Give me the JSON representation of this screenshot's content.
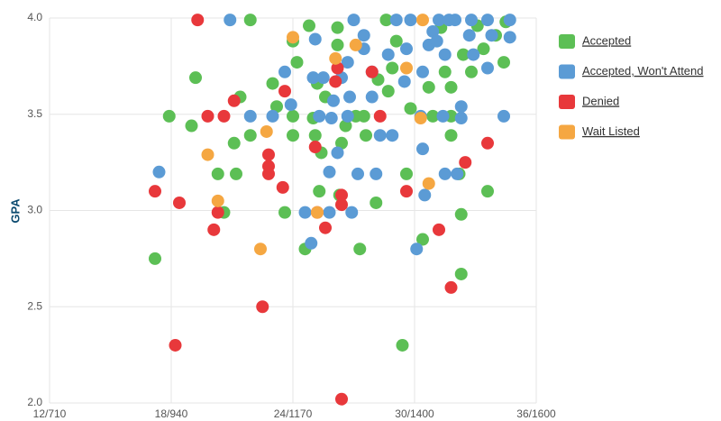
{
  "chart_data": {
    "type": "scatter",
    "y_label": "GPA",
    "xlim": [
      12,
      36
    ],
    "ylim": [
      2,
      4
    ],
    "xticks": [
      {
        "value": 12,
        "label": "12/710"
      },
      {
        "value": 18,
        "label": "18/940"
      },
      {
        "value": 24,
        "label": "24/1170"
      },
      {
        "value": 30,
        "label": "30/1400"
      },
      {
        "value": 36,
        "label": "36/1600"
      }
    ],
    "yticks": [
      {
        "value": 2,
        "label": "2.0"
      },
      2.5,
      {
        "value": 3,
        "label": "3.0"
      },
      3.5,
      {
        "value": 4,
        "label": "4.0"
      }
    ],
    "grid": true,
    "legend": "right",
    "series": [
      {
        "name": "Accepted",
        "color": "#5cbf55",
        "x": [
          17.2,
          17.9,
          19.0,
          19.2,
          20.3,
          20.6,
          21.1,
          21.2,
          21.4,
          21.9,
          21.9,
          23.0,
          23.2,
          23.6,
          24.0,
          24.0,
          24.0,
          24.2,
          24.6,
          24.8,
          25.0,
          25.1,
          25.2,
          25.3,
          25.4,
          25.6,
          26.2,
          26.2,
          26.3,
          26.4,
          26.6,
          27.1,
          27.3,
          27.5,
          27.6,
          28.1,
          28.2,
          28.6,
          28.7,
          28.9,
          29.1,
          29.4,
          29.6,
          29.8,
          30.4,
          30.7,
          30.9,
          31.3,
          31.5,
          31.8,
          31.8,
          31.8,
          32.2,
          32.3,
          32.3,
          32.4,
          32.8,
          33.1,
          33.4,
          33.6,
          34.0,
          34.4,
          34.5
        ],
        "values": [
          2.75,
          3.49,
          3.44,
          3.69,
          3.19,
          2.99,
          3.35,
          3.19,
          3.59,
          3.99,
          3.39,
          3.66,
          3.54,
          2.99,
          3.49,
          3.88,
          3.39,
          3.77,
          2.8,
          3.96,
          3.48,
          3.39,
          3.66,
          3.1,
          3.3,
          3.59,
          3.95,
          3.86,
          3.08,
          3.35,
          3.44,
          3.49,
          2.8,
          3.49,
          3.39,
          3.04,
          3.68,
          3.99,
          3.62,
          3.74,
          3.88,
          2.3,
          3.19,
          3.53,
          2.85,
          3.64,
          3.49,
          3.95,
          3.72,
          3.49,
          3.39,
          3.64,
          3.19,
          2.98,
          2.67,
          3.81,
          3.72,
          3.96,
          3.84,
          3.1,
          3.91,
          3.77,
          3.98
        ]
      },
      {
        "name": "Accepted, Won't Attend",
        "color": "#5b9bd5",
        "x": [
          17.4,
          20.9,
          21.9,
          23.0,
          23.6,
          23.9,
          24.6,
          24.9,
          25.0,
          25.1,
          25.3,
          25.5,
          25.8,
          25.8,
          25.9,
          26.0,
          26.2,
          26.4,
          26.7,
          26.7,
          26.8,
          26.9,
          27.0,
          27.2,
          27.5,
          27.5,
          27.9,
          28.1,
          27.9,
          28.3,
          28.7,
          28.9,
          29.1,
          29.5,
          29.6,
          29.8,
          30.1,
          30.3,
          30.4,
          30.4,
          30.5,
          30.7,
          30.9,
          31.1,
          31.2,
          31.4,
          31.5,
          31.5,
          31.7,
          32.0,
          32.1,
          32.3,
          32.3,
          32.7,
          32.8,
          32.9,
          33.6,
          33.6,
          33.8,
          34.4,
          34.7,
          34.7
        ],
        "values": [
          3.2,
          3.99,
          3.49,
          3.49,
          3.72,
          3.55,
          2.99,
          2.83,
          3.69,
          3.89,
          3.49,
          3.69,
          2.99,
          3.2,
          3.48,
          3.57,
          3.3,
          3.69,
          3.77,
          3.49,
          3.59,
          2.99,
          3.99,
          3.19,
          3.91,
          3.84,
          3.59,
          3.19,
          3.72,
          3.39,
          3.81,
          3.39,
          3.99,
          3.67,
          3.84,
          3.99,
          2.8,
          3.49,
          3.72,
          3.32,
          3.08,
          3.86,
          3.93,
          3.88,
          3.99,
          3.49,
          3.19,
          3.81,
          3.99,
          3.99,
          3.19,
          3.48,
          3.54,
          3.91,
          3.99,
          3.81,
          3.99,
          3.74,
          3.91,
          3.49,
          3.9,
          3.99
        ]
      },
      {
        "name": "Denied",
        "color": "#e8383b",
        "x": [
          17.2,
          18.2,
          18.4,
          19.3,
          19.8,
          20.1,
          20.3,
          20.6,
          21.1,
          22.5,
          22.8,
          22.8,
          22.8,
          23.5,
          23.6,
          25.1,
          25.2,
          25.6,
          26.1,
          26.2,
          26.4,
          26.4,
          26.4,
          27.9,
          28.3,
          29.6,
          31.2,
          31.8,
          32.5,
          33.6
        ],
        "values": [
          3.1,
          2.3,
          3.04,
          3.99,
          3.49,
          2.9,
          2.99,
          3.49,
          3.57,
          2.5,
          3.29,
          3.23,
          3.19,
          3.12,
          3.62,
          3.33,
          2.99,
          2.91,
          3.67,
          3.74,
          3.08,
          3.03,
          2.02,
          3.72,
          3.49,
          3.1,
          2.9,
          2.6,
          3.25,
          3.35
        ]
      },
      {
        "name": "Wait Listed",
        "color": "#f5a742",
        "x": [
          19.8,
          20.3,
          22.4,
          22.7,
          24.0,
          26.1,
          25.2,
          29.6,
          30.3,
          30.7,
          30.4,
          27.1
        ],
        "values": [
          3.29,
          3.05,
          2.8,
          3.41,
          3.9,
          3.79,
          2.99,
          3.74,
          3.48,
          3.14,
          3.99,
          3.86
        ]
      }
    ]
  }
}
